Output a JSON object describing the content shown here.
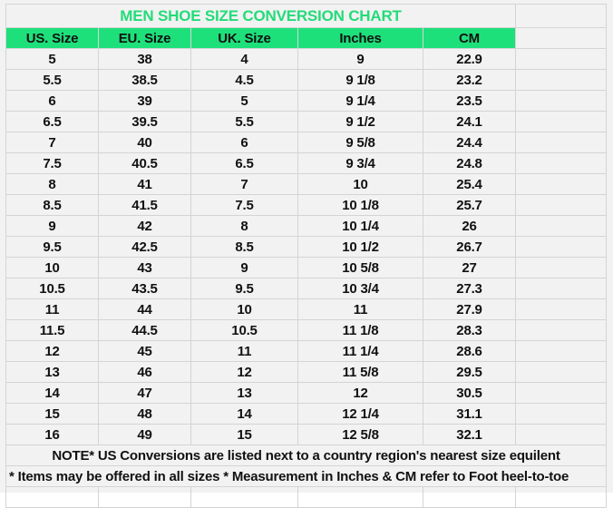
{
  "title": "MEN SHOE SIZE CONVERSION CHART",
  "colors": {
    "title": "#22dc78",
    "header_bg": "#1ee07b",
    "sheet_bg": "#f2f2f2",
    "grid": "#d4d4d4"
  },
  "headers": [
    "US. Size",
    "EU. Size",
    "UK. Size",
    "Inches",
    "CM"
  ],
  "rows": [
    [
      "5",
      "38",
      "4",
      "9",
      "22.9"
    ],
    [
      "5.5",
      "38.5",
      "4.5",
      "9 1/8",
      "23.2"
    ],
    [
      "6",
      "39",
      "5",
      "9 1/4",
      "23.5"
    ],
    [
      "6.5",
      "39.5",
      "5.5",
      "9 1/2",
      "24.1"
    ],
    [
      "7",
      "40",
      "6",
      "9 5/8",
      "24.4"
    ],
    [
      "7.5",
      "40.5",
      "6.5",
      "9 3/4",
      "24.8"
    ],
    [
      "8",
      "41",
      "7",
      "10",
      "25.4"
    ],
    [
      "8.5",
      "41.5",
      "7.5",
      "10 1/8",
      "25.7"
    ],
    [
      "9",
      "42",
      "8",
      "10 1/4",
      "26"
    ],
    [
      "9.5",
      "42.5",
      "8.5",
      "10 1/2",
      "26.7"
    ],
    [
      "10",
      "43",
      "9",
      "10 5/8",
      "27"
    ],
    [
      "10.5",
      "43.5",
      "9.5",
      "10 3/4",
      "27.3"
    ],
    [
      "11",
      "44",
      "10",
      "11",
      "27.9"
    ],
    [
      "11.5",
      "44.5",
      "10.5",
      "11 1/8",
      "28.3"
    ],
    [
      "12",
      "45",
      "11",
      "11 1/4",
      "28.6"
    ],
    [
      "13",
      "46",
      "12",
      "11 5/8",
      "29.5"
    ],
    [
      "14",
      "47",
      "13",
      "12",
      "30.5"
    ],
    [
      "15",
      "48",
      "14",
      "12 1/4",
      "31.1"
    ],
    [
      "16",
      "49",
      "15",
      "12 5/8",
      "32.1"
    ]
  ],
  "notes": [
    "NOTE* US Conversions are listed next to a country region's nearest size equilent",
    "* Items may be offered in all sizes * Measurement in Inches & CM refer to Foot heel-to-toe"
  ]
}
